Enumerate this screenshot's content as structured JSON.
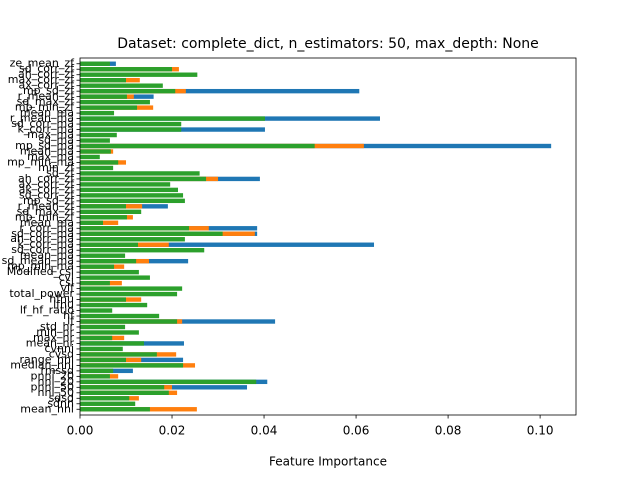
{
  "chart_data": {
    "type": "barh_overlay",
    "title": "Dataset: complete_dict, n_estimators: 50, max_depth: None",
    "xlabel": "Feature Importance",
    "categories": [
      "ze_mean_zf",
      "sd_corr_zf",
      "ah_corr_zf",
      "max_corr_zf",
      "ax_corr_zf",
      "mp_sd_zf",
      "r_mean_zf",
      "sd_max_zf",
      "mp_min_zf",
      "mean_ma",
      "r_mean_ma",
      "sd_corr_ma",
      "k_corr_ma",
      "max_ma",
      "sd_ma",
      "mp_sd_ma",
      "mean_ma",
      "max_ma",
      "mp_min_ma",
      "min_zf",
      "sd_zf",
      "ah_corr_zf",
      "ax_corr_zf",
      "ak_corr_zf",
      "sd_corr_zf",
      "mp_sd_zf",
      "r_mean_zf",
      "sd_max_zf",
      "mp_min_zf",
      "mean_ma",
      "r_corr_ma",
      "sd_corr_ma",
      "ah_corr_ma",
      "k_corr_ma",
      "sd_corr_ma",
      "mean_ma",
      "sd_mean_ma",
      "mp_min_ma",
      "Modified_csi",
      "cvi",
      "csi",
      "vlf",
      "total_power",
      "hfnu",
      "lfnu",
      "lf_hf_ratio",
      "hf",
      "lf",
      "std_hr",
      "min_hr",
      "max_hr",
      "mean_hr",
      "cvnni",
      "cvsd",
      "range_nni",
      "median_nni",
      "rmssd",
      "pnni_20",
      "nni_20",
      "pnni_50",
      "nni_50",
      "sdsd",
      "sdnn",
      "mean_nni"
    ],
    "series": [
      {
        "color": "#1f77b4",
        "values": [
          0.0078,
          null,
          null,
          null,
          null,
          0.0607,
          0.016,
          null,
          null,
          null,
          0.0652,
          null,
          0.0402,
          null,
          null,
          0.1024,
          null,
          null,
          null,
          null,
          null,
          0.0391,
          null,
          null,
          null,
          null,
          0.0191,
          null,
          null,
          null,
          0.0385,
          0.0385,
          null,
          0.0639,
          null,
          null,
          0.0235,
          null,
          null,
          null,
          null,
          null,
          null,
          null,
          null,
          null,
          null,
          0.0424,
          null,
          null,
          null,
          0.0226,
          null,
          null,
          0.0224,
          null,
          0.0115,
          null,
          0.0407,
          0.0363,
          null,
          null,
          null,
          null
        ]
      },
      {
        "color": "#ff7f0e",
        "values": [
          null,
          0.0215,
          null,
          0.013,
          null,
          0.023,
          0.0117,
          null,
          0.0159,
          null,
          null,
          null,
          null,
          null,
          null,
          0.0617,
          0.0072,
          null,
          0.01,
          null,
          null,
          0.03,
          null,
          null,
          null,
          null,
          0.0135,
          null,
          0.0115,
          0.0083,
          0.028,
          0.038,
          null,
          0.0193,
          null,
          null,
          0.015,
          0.0096,
          null,
          null,
          0.0091,
          null,
          null,
          0.0133,
          null,
          null,
          null,
          0.0222,
          null,
          null,
          0.0096,
          null,
          null,
          0.0209,
          0.0133,
          0.025,
          null,
          0.0083,
          null,
          0.02,
          0.0211,
          0.0128,
          null,
          0.0254
        ]
      },
      {
        "color": "#2ca02c",
        "values": [
          0.0065,
          0.02,
          0.0255,
          0.01,
          0.018,
          0.0207,
          0.0102,
          0.0152,
          0.0124,
          0.0074,
          0.0402,
          0.022,
          0.022,
          0.008,
          0.0065,
          0.051,
          0.0067,
          0.0043,
          0.0083,
          0.0072,
          0.026,
          0.0274,
          0.0196,
          0.0213,
          0.0224,
          0.0228,
          0.01,
          0.0133,
          0.0102,
          0.005,
          0.0237,
          0.031,
          0.0228,
          0.0126,
          0.027,
          0.0098,
          0.0122,
          0.0074,
          0.0128,
          0.0152,
          0.0065,
          0.0222,
          0.0211,
          0.01,
          0.0146,
          0.007,
          0.0172,
          0.0211,
          0.0098,
          0.0128,
          0.007,
          0.0139,
          0.0093,
          0.0167,
          0.01,
          0.0224,
          0.0072,
          0.0065,
          0.0383,
          0.0183,
          0.0193,
          0.0107,
          0.012,
          0.0152
        ]
      }
    ],
    "xlim": [
      0,
      0.1078
    ],
    "xticks": [
      {
        "value": 0,
        "label": "0.00"
      },
      {
        "value": 0.02,
        "label": "0.02"
      },
      {
        "value": 0.04,
        "label": "0.04"
      },
      {
        "value": 0.06,
        "label": "0.06"
      },
      {
        "value": 0.08,
        "label": "0.08"
      },
      {
        "value": 0.1,
        "label": "0.10"
      }
    ]
  }
}
